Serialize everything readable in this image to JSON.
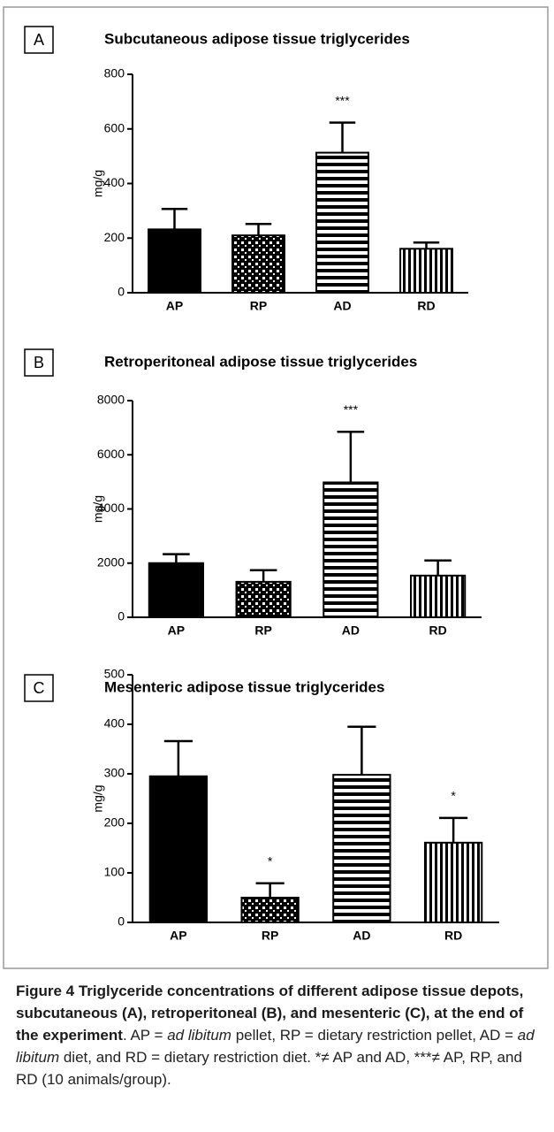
{
  "chart_data": [
    {
      "type": "bar",
      "panel": "A",
      "title": "Subcutaneous adipose tissue triglycerides",
      "ylabel": "mg/g",
      "categories": [
        "AP",
        "RP",
        "AD",
        "RD"
      ],
      "values": [
        232,
        210,
        513,
        161
      ],
      "errors": [
        75,
        42,
        110,
        23
      ],
      "annotations": [
        null,
        null,
        "***",
        null
      ],
      "patterns": [
        "solid",
        "checker",
        "horizontal",
        "vertical"
      ],
      "ylim": [
        0,
        800
      ],
      "yticks": [
        0,
        200,
        400,
        600,
        800
      ]
    },
    {
      "type": "bar",
      "panel": "B",
      "title": "Retroperitoneal adipose tissue triglycerides",
      "ylabel": "mg/g",
      "categories": [
        "AP",
        "RP",
        "AD",
        "RD"
      ],
      "values": [
        2000,
        1310,
        4980,
        1540
      ],
      "errors": [
        330,
        430,
        1870,
        560
      ],
      "annotations": [
        null,
        null,
        "***",
        null
      ],
      "patterns": [
        "solid",
        "checker",
        "horizontal",
        "vertical"
      ],
      "ylim": [
        0,
        8000
      ],
      "yticks": [
        0,
        2000,
        4000,
        6000,
        8000
      ]
    },
    {
      "type": "bar",
      "panel": "C",
      "title": "Mesenteric adipose tissue triglycerides",
      "ylabel": "mg/g",
      "categories": [
        "AP",
        "RP",
        "AD",
        "RD"
      ],
      "values": [
        295,
        50,
        298,
        161
      ],
      "errors": [
        71,
        29,
        97,
        50
      ],
      "annotations": [
        null,
        "*",
        null,
        "*"
      ],
      "patterns": [
        "solid",
        "checker",
        "horizontal",
        "vertical"
      ],
      "ylim": [
        0,
        500
      ],
      "yticks": [
        0,
        100,
        200,
        300,
        400,
        500
      ]
    }
  ],
  "caption": {
    "bold": "Figure 4 Triglyceride concentrations of different adipose tissue depots, subcutaneous (A), retroperitoneal (B), and mesenteric (C), at the end of the experiment",
    "parts": [
      ". AP = ",
      "ad libitum",
      " pellet, RP = dietary restriction pellet, AD = ",
      "ad libitum",
      " diet, and RD = dietary restriction diet. *≠ AP and AD, ***≠ AP, RP, and RD (10 animals/group)."
    ]
  }
}
